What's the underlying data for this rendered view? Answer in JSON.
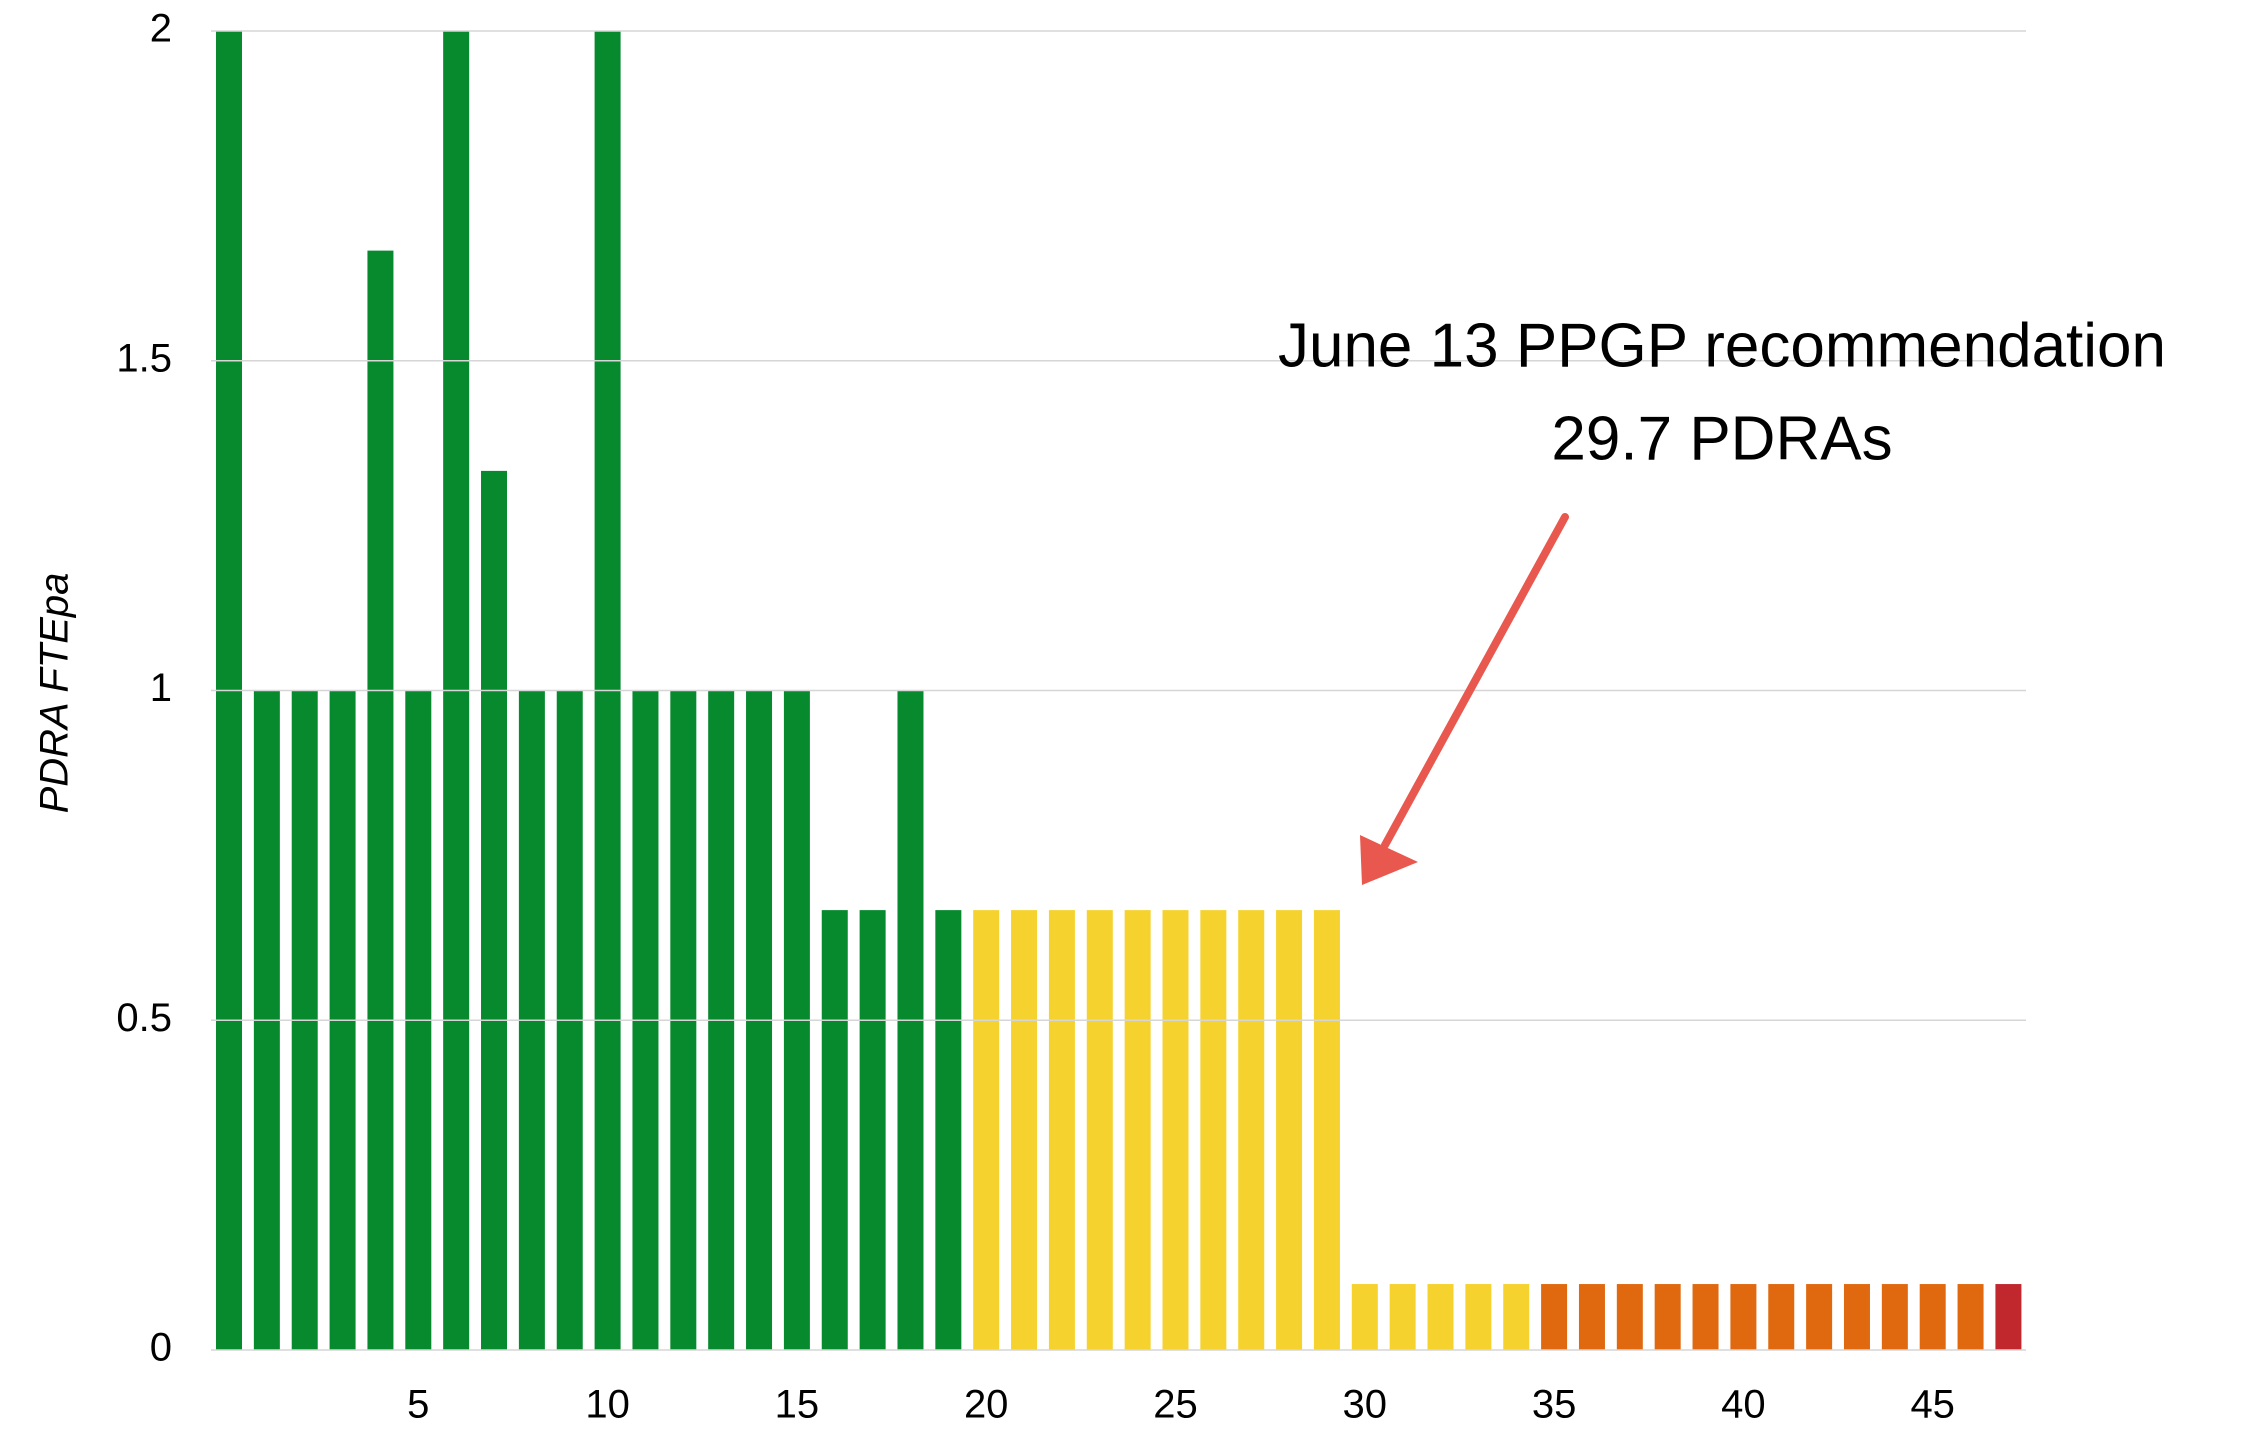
{
  "chart_data": {
    "type": "bar",
    "y_label": "PDRA   FTEpa",
    "annotation": [
      "June 13 PPGP recommendation",
      "29.7 PDRAs"
    ],
    "categories": [
      null,
      null,
      null,
      null,
      null,
      5,
      null,
      null,
      null,
      null,
      10,
      null,
      null,
      null,
      null,
      15,
      null,
      null,
      null,
      null,
      20,
      null,
      null,
      null,
      null,
      25,
      null,
      null,
      null,
      null,
      30,
      null,
      null,
      null,
      null,
      35,
      null,
      null,
      null,
      null,
      40,
      null,
      null,
      null,
      null,
      45,
      null,
      null
    ],
    "values": [
      2,
      1,
      1,
      1,
      1.667,
      1,
      2,
      1.333,
      1,
      1,
      2,
      1,
      1,
      1,
      1,
      1,
      0.667,
      0.667,
      1,
      0.667,
      0.667,
      0.667,
      0.667,
      0.667,
      0.667,
      0.667,
      0.667,
      0.667,
      0.667,
      0.667,
      0.1,
      0.1,
      0.1,
      0.1,
      0.1,
      0.1,
      0.1,
      0.1,
      0.1,
      0.1,
      0.1,
      0.1,
      0.1,
      0.1,
      0.1,
      0.1,
      0.1,
      0.1
    ],
    "colors": [
      "#078a2e",
      "#078a2e",
      "#078a2e",
      "#078a2e",
      "#078a2e",
      "#078a2e",
      "#078a2e",
      "#078a2e",
      "#078a2e",
      "#078a2e",
      "#078a2e",
      "#078a2e",
      "#078a2e",
      "#078a2e",
      "#078a2e",
      "#078a2e",
      "#078a2e",
      "#078a2e",
      "#078a2e",
      "#078a2e",
      "#f5d22e",
      "#f5d22e",
      "#f5d22e",
      "#f5d22e",
      "#f5d22e",
      "#f5d22e",
      "#f5d22e",
      "#f5d22e",
      "#f5d22e",
      "#f5d22e",
      "#f5d22e",
      "#f5d22e",
      "#f5d22e",
      "#f5d22e",
      "#f5d22e",
      "#e0690f",
      "#e0690f",
      "#e0690f",
      "#e0690f",
      "#e0690f",
      "#e0690f",
      "#e0690f",
      "#e0690f",
      "#e0690f",
      "#e0690f",
      "#e0690f",
      "#e0690f",
      "#c0282e"
    ],
    "ylim": [
      0,
      2
    ],
    "yticks": [
      0,
      0.5,
      1,
      1.5,
      2
    ],
    "grid": true
  }
}
